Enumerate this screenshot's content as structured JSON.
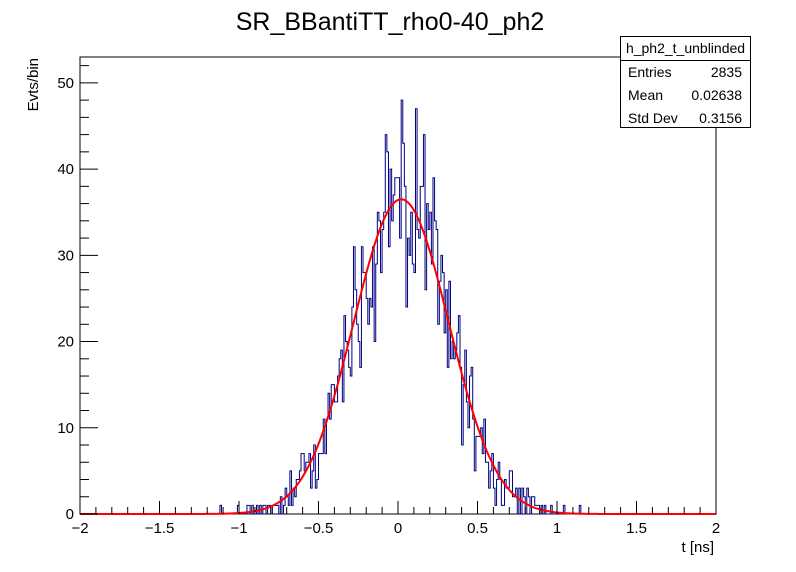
{
  "chart_data": {
    "type": "histogram",
    "title": "SR_BBantiTT_rho0-40_ph2",
    "xlabel": "t [ns]",
    "ylabel": "Evts/bin",
    "xlim": [
      -2,
      2
    ],
    "ylim": [
      0,
      53
    ],
    "xticks": [
      -2,
      -1.5,
      -1,
      -0.5,
      0,
      0.5,
      1,
      1.5,
      2
    ],
    "xtick_labels": [
      "−2",
      "−1.5",
      "−1",
      "−0.5",
      "0",
      "0.5",
      "1",
      "1.5",
      "2"
    ],
    "yticks": [
      0,
      10,
      20,
      30,
      40,
      50
    ],
    "ytick_labels": [
      "0",
      "10",
      "20",
      "30",
      "40",
      "50"
    ],
    "bin_edges_range": [
      -2,
      2
    ],
    "bin_count": 400,
    "histogram_color": "#000080",
    "fit": {
      "name": "gaus",
      "color": "#ff0000",
      "amplitude": 36.5,
      "mean": 0.02,
      "sigma": 0.3
    },
    "stats": {
      "name": "h_ph2_t_unblinded",
      "entries_label": "Entries",
      "entries": "2835",
      "mean_label": "Mean",
      "mean": "0.02638",
      "stddev_label": "Std Dev",
      "stddev": "0.3156"
    }
  }
}
